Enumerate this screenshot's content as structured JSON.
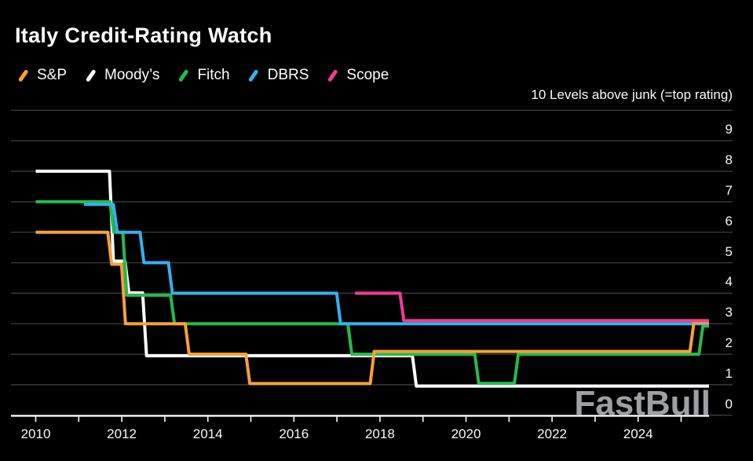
{
  "title": "Italy Credit-Rating Watch",
  "annotation": "10 Levels above junk (=top rating)",
  "watermark": "FastBull",
  "colors": {
    "background": "#000000",
    "grid": "#3A3A3C",
    "axis": "#FFFFFF",
    "text": "#FAFAFA",
    "sp": "#F7A137",
    "moodys": "#FFFFFF",
    "fitch": "#23BC4B",
    "dbrs": "#35B1EE",
    "scope": "#EF3C96"
  },
  "chart_data": {
    "type": "line",
    "step_style": "step-after",
    "title": "Italy Credit-Rating Watch",
    "ylabel": "Levels above junk",
    "ylim": [
      0,
      10
    ],
    "x_range": [
      2009.4,
      2026.2
    ],
    "t_end": 2025.65,
    "grid": true,
    "legend_position": "top-left",
    "y_tick_labels": [
      "9",
      "8",
      "7",
      "6",
      "5",
      "4",
      "3",
      "2",
      "1",
      "0"
    ],
    "x_ticks": [
      2010,
      2011,
      2012,
      2013,
      2014,
      2015,
      2016,
      2017,
      2018,
      2019,
      2020,
      2021,
      2022,
      2023,
      2024,
      2025
    ],
    "x_tick_labels": [
      {
        "t": 2010,
        "label": "2010"
      },
      {
        "t": 2012,
        "label": "2012"
      },
      {
        "t": 2014,
        "label": "2014"
      },
      {
        "t": 2016,
        "label": "2016"
      },
      {
        "t": 2018,
        "label": "2018"
      },
      {
        "t": 2020,
        "label": "2020"
      },
      {
        "t": 2022,
        "label": "2022"
      },
      {
        "t": 2024,
        "label": "2024"
      }
    ],
    "series": [
      {
        "key": "sp",
        "name": "S&P",
        "color": "#F7A137",
        "z": 3,
        "steps": [
          {
            "t": 2010.0,
            "level": 6
          },
          {
            "t": 2011.72,
            "level": 5,
            "dy": 2
          },
          {
            "t": 2012.04,
            "level": 3
          },
          {
            "t": 2013.52,
            "level": 2
          },
          {
            "t": 2014.93,
            "level": 1,
            "dy": -1.5
          },
          {
            "t": 2017.82,
            "level": 2,
            "dy": -3.5
          },
          {
            "t": 2025.25,
            "level": 3,
            "dy": -1.5
          }
        ]
      },
      {
        "key": "moodys",
        "name": "Moody’s",
        "color": "#FFFFFF",
        "z": 0,
        "steps": [
          {
            "t": 2010.0,
            "level": 8
          },
          {
            "t": 2011.76,
            "level": 5,
            "dy": -2
          },
          {
            "t": 2012.12,
            "level": 4,
            "dy": -0.5
          },
          {
            "t": 2012.53,
            "level": 2,
            "dy": 2
          },
          {
            "t": 2018.8,
            "level": 1,
            "dy": 1.8
          }
        ]
      },
      {
        "key": "fitch",
        "name": "Fitch",
        "color": "#23BC4B",
        "z": 1,
        "steps": [
          {
            "t": 2010.0,
            "level": 7
          },
          {
            "t": 2011.77,
            "level": 6
          },
          {
            "t": 2012.07,
            "level": 4,
            "dy": 2.5
          },
          {
            "t": 2013.18,
            "level": 3
          },
          {
            "t": 2017.3,
            "level": 2
          },
          {
            "t": 2020.25,
            "level": 1,
            "dy": -1.8
          },
          {
            "t": 2021.17,
            "level": 2
          },
          {
            "t": 2025.46,
            "level": 3,
            "dy": 3
          }
        ]
      },
      {
        "key": "dbrs",
        "name": "DBRS",
        "color": "#35B1EE",
        "z": 2,
        "steps": [
          {
            "t": 2011.12,
            "level": 7,
            "dy": 3.4
          },
          {
            "t": 2011.85,
            "level": 6
          },
          {
            "t": 2012.47,
            "level": 5
          },
          {
            "t": 2013.13,
            "level": 4
          },
          {
            "t": 2017.04,
            "level": 3
          }
        ]
      },
      {
        "key": "scope",
        "name": "Scope",
        "color": "#EF3C96",
        "z": 4,
        "steps": [
          {
            "t": 2017.42,
            "level": 4
          },
          {
            "t": 2018.51,
            "level": 3,
            "dy": -4
          }
        ]
      }
    ]
  }
}
